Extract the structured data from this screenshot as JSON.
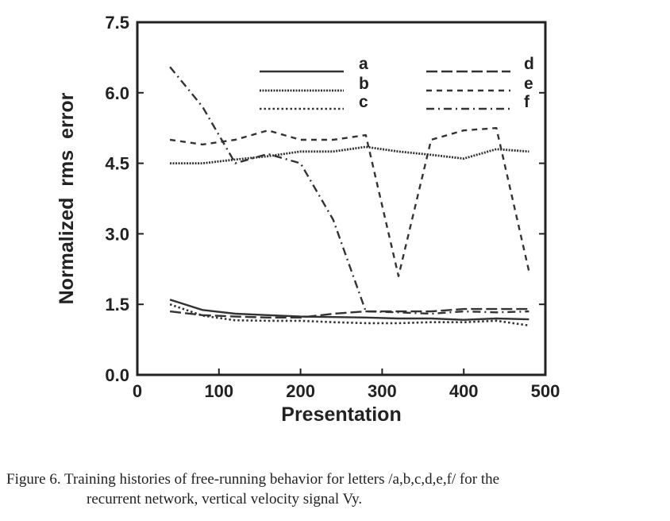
{
  "chart_data": {
    "type": "line",
    "title": "",
    "xlabel": "Presentation",
    "ylabel": "Normalized  rms  error",
    "xlim": [
      0,
      500
    ],
    "ylim": [
      0.0,
      7.5
    ],
    "x_ticks": [
      "0",
      "100",
      "200",
      "300",
      "400",
      "500"
    ],
    "y_ticks": [
      "0.0",
      "1.5",
      "3.0",
      "4.5",
      "6.0",
      "7.5"
    ],
    "grid": false,
    "legend_position": "top",
    "series": [
      {
        "name": "a",
        "style": "solid",
        "x": [
          40,
          80,
          120,
          160,
          200,
          240,
          280,
          320,
          360,
          400,
          440,
          480
        ],
        "y": [
          1.6,
          1.38,
          1.3,
          1.27,
          1.24,
          1.23,
          1.22,
          1.2,
          1.2,
          1.17,
          1.2,
          1.18
        ]
      },
      {
        "name": "b",
        "style": "dense-dotted",
        "x": [
          40,
          80,
          120,
          160,
          200,
          240,
          280,
          320,
          360,
          400,
          440,
          480
        ],
        "y": [
          4.5,
          4.5,
          4.58,
          4.65,
          4.75,
          4.75,
          4.85,
          4.75,
          4.68,
          4.6,
          4.8,
          4.75
        ]
      },
      {
        "name": "c",
        "style": "dotted",
        "x": [
          40,
          80,
          120,
          160,
          200,
          240,
          280,
          320,
          360,
          400,
          440,
          480
        ],
        "y": [
          1.5,
          1.26,
          1.16,
          1.15,
          1.15,
          1.12,
          1.1,
          1.1,
          1.12,
          1.12,
          1.15,
          1.05
        ]
      },
      {
        "name": "d",
        "style": "long-dash",
        "x": [
          40,
          80,
          120,
          160,
          200,
          240,
          280,
          320,
          360,
          400,
          440,
          480
        ],
        "y": [
          1.35,
          1.27,
          1.24,
          1.22,
          1.22,
          1.3,
          1.35,
          1.35,
          1.35,
          1.4,
          1.4,
          1.4
        ]
      },
      {
        "name": "e",
        "style": "dashed",
        "x": [
          40,
          80,
          120,
          160,
          200,
          240,
          280,
          320,
          360,
          400,
          440,
          480
        ],
        "y": [
          5.0,
          4.9,
          5.0,
          5.2,
          5.0,
          5.0,
          5.1,
          2.1,
          5.0,
          5.2,
          5.25,
          2.2
        ]
      },
      {
        "name": "f",
        "style": "dash-dot",
        "x": [
          40,
          80,
          120,
          160,
          200,
          240,
          280,
          320,
          360,
          400,
          440,
          480
        ],
        "y": [
          6.55,
          5.7,
          4.5,
          4.7,
          4.5,
          3.3,
          1.35,
          1.33,
          1.3,
          1.35,
          1.33,
          1.35
        ]
      }
    ]
  },
  "caption": {
    "line1": "Figure 6. Training histories of free-running behavior for letters /a,b,c,d,e,f/ for the",
    "line2": "recurrent network, vertical velocity signal Vy."
  }
}
